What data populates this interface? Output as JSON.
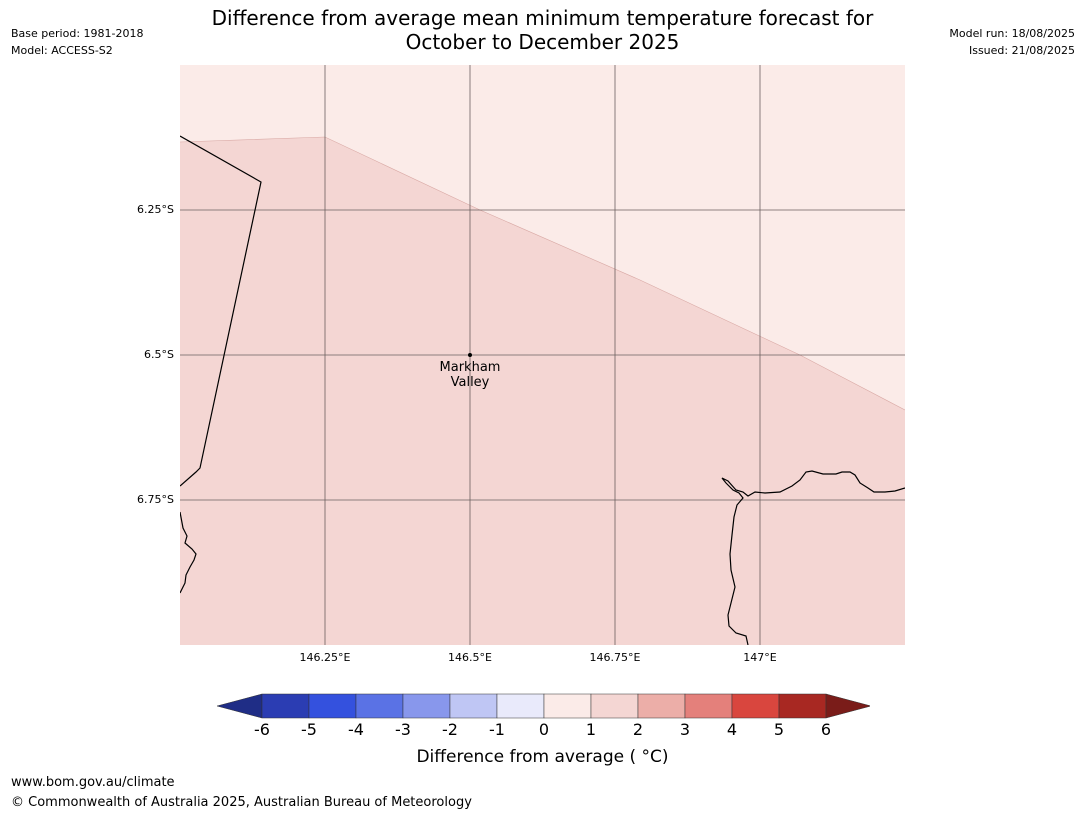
{
  "header": {
    "title_line1": "Difference from average mean minimum temperature forecast for",
    "title_line2": "October to December 2025",
    "base_period": "Base period: 1981-2018",
    "model": "Model: ACCESS-S2",
    "model_run": "Model run: 18/08/2025",
    "issued": "Issued: 21/08/2025"
  },
  "map": {
    "x_ticks": [
      "146.25°E",
      "146.5°E",
      "146.75°E",
      "147°E"
    ],
    "y_ticks": [
      "6.25°S",
      "6.5°S",
      "6.75°S"
    ],
    "place_label_line1": "Markham",
    "place_label_line2": "Valley",
    "fill_colors": {
      "zero_to_one": "#fbebe8",
      "one_to_two": "#f4d6d3"
    },
    "land_outline_color": "#000000",
    "grid_color": "#6b5f5f"
  },
  "colorbar": {
    "ticks": [
      "-6",
      "-5",
      "-4",
      "-3",
      "-2",
      "-1",
      "0",
      "1",
      "2",
      "3",
      "4",
      "5",
      "6"
    ],
    "colors": [
      "#1f2d86",
      "#2b3db3",
      "#3451de",
      "#5a72e5",
      "#8897ec",
      "#bfc6f4",
      "#e9eafb",
      "#fbebe8",
      "#f4d6d3",
      "#ecaea8",
      "#e4807b",
      "#d9463e",
      "#a82822",
      "#7a1c19"
    ],
    "label": "Difference from average ( °C)"
  },
  "footer": {
    "url": "www.bom.gov.au/climate",
    "copyright": "© Commonwealth of Australia 2025, Australian Bureau of Meteorology"
  }
}
